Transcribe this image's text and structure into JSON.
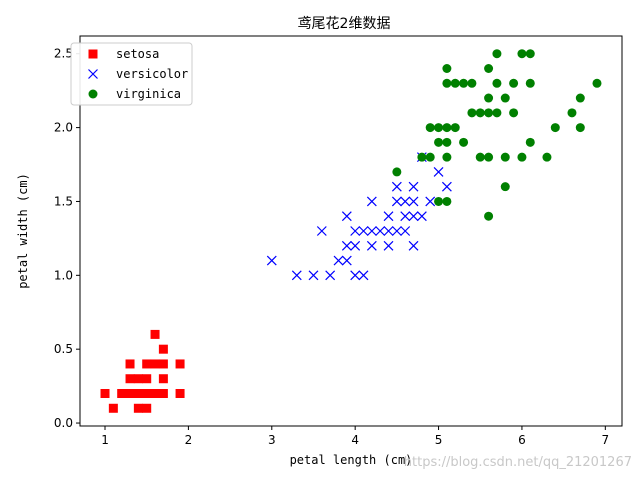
{
  "chart_data": {
    "type": "scatter",
    "title": "鸢尾花2维数据",
    "xlabel": "petal length (cm)",
    "ylabel": "petal width (cm)",
    "xlim": [
      0.7,
      7.2
    ],
    "ylim": [
      -0.02,
      2.62
    ],
    "xticks": [
      1,
      2,
      3,
      4,
      5,
      6,
      7
    ],
    "yticks": [
      0.0,
      0.5,
      1.0,
      1.5,
      2.0,
      2.5
    ],
    "xtick_labels": [
      "1",
      "2",
      "3",
      "4",
      "5",
      "6",
      "7"
    ],
    "ytick_labels": [
      "0.0",
      "0.5",
      "1.0",
      "1.5",
      "2.0",
      "2.5"
    ],
    "grid": false,
    "legend_position": "top-left",
    "series": [
      {
        "name": "setosa",
        "marker": "square",
        "color": "#ff0000",
        "points": [
          [
            1.0,
            0.2
          ],
          [
            1.1,
            0.1
          ],
          [
            1.2,
            0.2
          ],
          [
            1.3,
            0.2
          ],
          [
            1.3,
            0.3
          ],
          [
            1.3,
            0.4
          ],
          [
            1.4,
            0.1
          ],
          [
            1.4,
            0.2
          ],
          [
            1.4,
            0.3
          ],
          [
            1.5,
            0.1
          ],
          [
            1.5,
            0.2
          ],
          [
            1.5,
            0.3
          ],
          [
            1.5,
            0.4
          ],
          [
            1.6,
            0.2
          ],
          [
            1.6,
            0.4
          ],
          [
            1.6,
            0.6
          ],
          [
            1.7,
            0.2
          ],
          [
            1.7,
            0.3
          ],
          [
            1.7,
            0.4
          ],
          [
            1.7,
            0.5
          ],
          [
            1.9,
            0.2
          ],
          [
            1.9,
            0.4
          ]
        ]
      },
      {
        "name": "versicolor",
        "marker": "x",
        "color": "#0000ff",
        "points": [
          [
            3.0,
            1.1
          ],
          [
            3.3,
            1.0
          ],
          [
            3.5,
            1.0
          ],
          [
            3.6,
            1.3
          ],
          [
            3.7,
            1.0
          ],
          [
            3.8,
            1.1
          ],
          [
            3.9,
            1.1
          ],
          [
            3.9,
            1.2
          ],
          [
            3.9,
            1.4
          ],
          [
            4.0,
            1.0
          ],
          [
            4.0,
            1.2
          ],
          [
            4.0,
            1.3
          ],
          [
            4.1,
            1.0
          ],
          [
            4.1,
            1.3
          ],
          [
            4.2,
            1.2
          ],
          [
            4.2,
            1.3
          ],
          [
            4.2,
            1.5
          ],
          [
            4.3,
            1.3
          ],
          [
            4.4,
            1.2
          ],
          [
            4.4,
            1.3
          ],
          [
            4.4,
            1.4
          ],
          [
            4.5,
            1.3
          ],
          [
            4.5,
            1.5
          ],
          [
            4.5,
            1.6
          ],
          [
            4.6,
            1.3
          ],
          [
            4.6,
            1.4
          ],
          [
            4.6,
            1.5
          ],
          [
            4.7,
            1.2
          ],
          [
            4.7,
            1.4
          ],
          [
            4.7,
            1.5
          ],
          [
            4.7,
            1.6
          ],
          [
            4.8,
            1.4
          ],
          [
            4.8,
            1.8
          ],
          [
            4.9,
            1.5
          ],
          [
            5.0,
            1.7
          ],
          [
            5.1,
            1.6
          ]
        ]
      },
      {
        "name": "virginica",
        "marker": "circle",
        "color": "#008000",
        "points": [
          [
            4.5,
            1.7
          ],
          [
            4.8,
            1.8
          ],
          [
            4.9,
            1.8
          ],
          [
            4.9,
            2.0
          ],
          [
            5.0,
            1.5
          ],
          [
            5.0,
            1.9
          ],
          [
            5.0,
            2.0
          ],
          [
            5.1,
            1.5
          ],
          [
            5.1,
            1.8
          ],
          [
            5.1,
            1.9
          ],
          [
            5.1,
            2.0
          ],
          [
            5.1,
            2.3
          ],
          [
            5.1,
            2.4
          ],
          [
            5.2,
            2.0
          ],
          [
            5.2,
            2.3
          ],
          [
            5.3,
            1.9
          ],
          [
            5.3,
            2.3
          ],
          [
            5.4,
            2.1
          ],
          [
            5.4,
            2.3
          ],
          [
            5.5,
            1.8
          ],
          [
            5.5,
            2.1
          ],
          [
            5.6,
            1.4
          ],
          [
            5.6,
            1.8
          ],
          [
            5.6,
            2.1
          ],
          [
            5.6,
            2.2
          ],
          [
            5.6,
            2.4
          ],
          [
            5.7,
            2.1
          ],
          [
            5.7,
            2.3
          ],
          [
            5.7,
            2.5
          ],
          [
            5.8,
            1.6
          ],
          [
            5.8,
            1.8
          ],
          [
            5.8,
            2.2
          ],
          [
            5.9,
            2.1
          ],
          [
            5.9,
            2.3
          ],
          [
            6.0,
            1.8
          ],
          [
            6.0,
            2.5
          ],
          [
            6.1,
            1.9
          ],
          [
            6.1,
            2.3
          ],
          [
            6.1,
            2.5
          ],
          [
            6.3,
            1.8
          ],
          [
            6.4,
            2.0
          ],
          [
            6.6,
            2.1
          ],
          [
            6.7,
            2.0
          ],
          [
            6.7,
            2.2
          ],
          [
            6.9,
            2.3
          ]
        ]
      }
    ]
  },
  "watermark": "https://blog.csdn.net/qq_21201267"
}
